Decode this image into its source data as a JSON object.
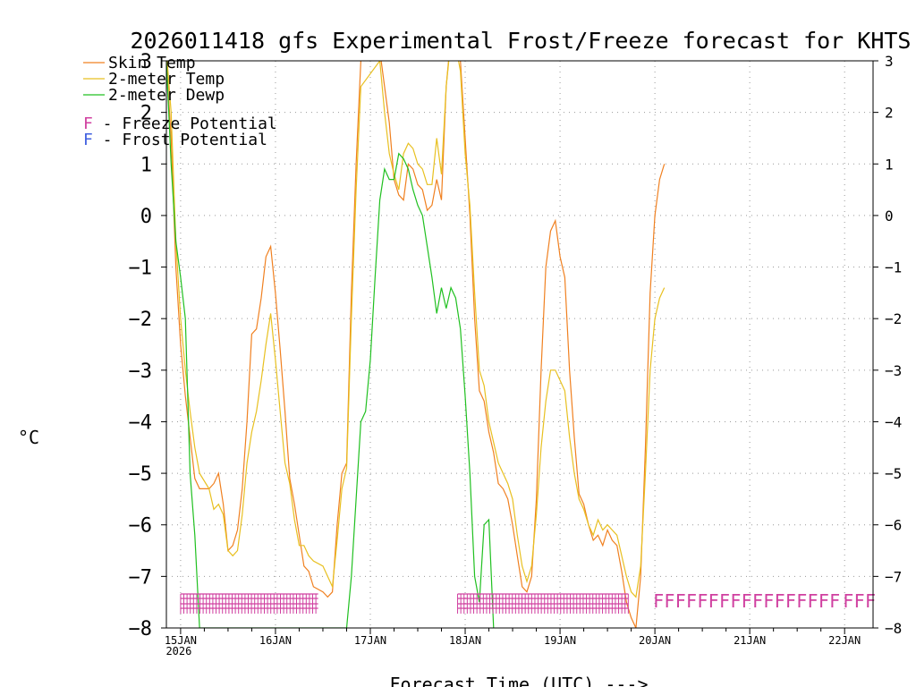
{
  "chart_data": {
    "type": "line",
    "title": "2026011418 gfs Experimental Frost/Freeze forecast for KHTS",
    "ylabel": "°C",
    "xlabel": "Forecast Time (UTC) --->",
    "ylim": [
      -8,
      3
    ],
    "xlim": [
      14.85,
      22.3
    ],
    "yticks": [
      3,
      2,
      1,
      0,
      -1,
      -2,
      -3,
      -4,
      -5,
      -6,
      -7,
      -8
    ],
    "ytick_labels": [
      "3",
      "2",
      "1",
      "0",
      "−1",
      "−2",
      "−3",
      "−4",
      "−5",
      "−6",
      "−7",
      "−8"
    ],
    "xticks": [
      {
        "day": 15,
        "label": "15JAN",
        "sub": "2026"
      },
      {
        "day": 16,
        "label": "16JAN"
      },
      {
        "day": 17,
        "label": "17JAN"
      },
      {
        "day": 18,
        "label": "18JAN"
      },
      {
        "day": 19,
        "label": "19JAN"
      },
      {
        "day": 20,
        "label": "20JAN"
      },
      {
        "day": 21,
        "label": "21JAN"
      },
      {
        "day": 22,
        "label": "22JAN"
      }
    ],
    "grid": true,
    "legend_position": "top-left",
    "series": [
      {
        "name": "Skin Temp",
        "color": "#f08020",
        "points": [
          [
            14.85,
            3.0
          ],
          [
            14.9,
            1.5
          ],
          [
            14.95,
            -1.0
          ],
          [
            15.0,
            -2.5
          ],
          [
            15.05,
            -3.5
          ],
          [
            15.1,
            -4.3
          ],
          [
            15.15,
            -5.1
          ],
          [
            15.2,
            -5.3
          ],
          [
            15.3,
            -5.3
          ],
          [
            15.35,
            -5.2
          ],
          [
            15.4,
            -5.0
          ],
          [
            15.45,
            -5.6
          ],
          [
            15.5,
            -6.5
          ],
          [
            15.55,
            -6.4
          ],
          [
            15.6,
            -6.1
          ],
          [
            15.65,
            -5.3
          ],
          [
            15.7,
            -4.0
          ],
          [
            15.75,
            -2.3
          ],
          [
            15.8,
            -2.2
          ],
          [
            15.85,
            -1.6
          ],
          [
            15.9,
            -0.8
          ],
          [
            15.95,
            -0.6
          ],
          [
            16.0,
            -1.5
          ],
          [
            16.05,
            -2.6
          ],
          [
            16.1,
            -3.8
          ],
          [
            16.15,
            -5.1
          ],
          [
            16.2,
            -5.6
          ],
          [
            16.25,
            -6.2
          ],
          [
            16.3,
            -6.8
          ],
          [
            16.35,
            -6.9
          ],
          [
            16.4,
            -7.2
          ],
          [
            16.5,
            -7.3
          ],
          [
            16.55,
            -7.4
          ],
          [
            16.6,
            -7.3
          ],
          [
            16.65,
            -6.0
          ],
          [
            16.7,
            -5.0
          ],
          [
            16.75,
            -4.8
          ],
          [
            16.8,
            -1.5
          ],
          [
            16.85,
            1.0
          ],
          [
            16.9,
            3.0
          ],
          [
            17.1,
            3.2
          ],
          [
            17.15,
            2.5
          ],
          [
            17.2,
            1.8
          ],
          [
            17.25,
            0.7
          ],
          [
            17.3,
            0.4
          ],
          [
            17.35,
            0.3
          ],
          [
            17.4,
            1.0
          ],
          [
            17.45,
            0.9
          ],
          [
            17.5,
            0.6
          ],
          [
            17.55,
            0.5
          ],
          [
            17.6,
            0.1
          ],
          [
            17.65,
            0.2
          ],
          [
            17.7,
            0.7
          ],
          [
            17.75,
            0.3
          ],
          [
            17.8,
            2.5
          ],
          [
            17.85,
            3.5
          ],
          [
            17.9,
            3.4
          ],
          [
            17.95,
            3.0
          ],
          [
            18.0,
            1.5
          ],
          [
            18.05,
            0.0
          ],
          [
            18.1,
            -2.0
          ],
          [
            18.15,
            -3.4
          ],
          [
            18.2,
            -3.6
          ],
          [
            18.25,
            -4.2
          ],
          [
            18.3,
            -4.6
          ],
          [
            18.35,
            -5.2
          ],
          [
            18.4,
            -5.3
          ],
          [
            18.45,
            -5.5
          ],
          [
            18.5,
            -6.0
          ],
          [
            18.55,
            -6.6
          ],
          [
            18.6,
            -7.2
          ],
          [
            18.65,
            -7.3
          ],
          [
            18.7,
            -7.0
          ],
          [
            18.75,
            -5.5
          ],
          [
            18.8,
            -3.0
          ],
          [
            18.85,
            -1.0
          ],
          [
            18.9,
            -0.3
          ],
          [
            18.95,
            -0.1
          ],
          [
            19.0,
            -0.8
          ],
          [
            19.05,
            -1.2
          ],
          [
            19.1,
            -3.0
          ],
          [
            19.15,
            -4.3
          ],
          [
            19.2,
            -5.4
          ],
          [
            19.25,
            -5.6
          ],
          [
            19.3,
            -6.0
          ],
          [
            19.35,
            -6.3
          ],
          [
            19.4,
            -6.2
          ],
          [
            19.45,
            -6.4
          ],
          [
            19.5,
            -6.1
          ],
          [
            19.55,
            -6.3
          ],
          [
            19.6,
            -6.4
          ],
          [
            19.65,
            -6.9
          ],
          [
            19.7,
            -7.5
          ],
          [
            19.75,
            -7.8
          ],
          [
            19.8,
            -8.0
          ],
          [
            19.85,
            -7.0
          ],
          [
            19.9,
            -4.5
          ],
          [
            19.95,
            -1.5
          ],
          [
            20.0,
            0.0
          ],
          [
            20.05,
            0.7
          ],
          [
            20.1,
            1.0
          ]
        ]
      },
      {
        "name": "2-meter Temp",
        "color": "#e8c020",
        "points": [
          [
            14.85,
            3.2
          ],
          [
            14.9,
            2.0
          ],
          [
            14.95,
            -0.5
          ],
          [
            15.0,
            -2.0
          ],
          [
            15.05,
            -3.0
          ],
          [
            15.1,
            -3.8
          ],
          [
            15.15,
            -4.5
          ],
          [
            15.2,
            -5.0
          ],
          [
            15.3,
            -5.3
          ],
          [
            15.35,
            -5.7
          ],
          [
            15.4,
            -5.6
          ],
          [
            15.45,
            -5.8
          ],
          [
            15.5,
            -6.5
          ],
          [
            15.55,
            -6.6
          ],
          [
            15.6,
            -6.5
          ],
          [
            15.65,
            -5.8
          ],
          [
            15.7,
            -4.8
          ],
          [
            15.75,
            -4.2
          ],
          [
            15.8,
            -3.8
          ],
          [
            15.85,
            -3.2
          ],
          [
            15.9,
            -2.5
          ],
          [
            15.95,
            -1.9
          ],
          [
            16.0,
            -2.8
          ],
          [
            16.05,
            -3.8
          ],
          [
            16.1,
            -4.8
          ],
          [
            16.15,
            -5.2
          ],
          [
            16.2,
            -5.9
          ],
          [
            16.25,
            -6.4
          ],
          [
            16.3,
            -6.4
          ],
          [
            16.35,
            -6.6
          ],
          [
            16.4,
            -6.7
          ],
          [
            16.5,
            -6.8
          ],
          [
            16.55,
            -7.0
          ],
          [
            16.6,
            -7.2
          ],
          [
            16.65,
            -6.3
          ],
          [
            16.7,
            -5.3
          ],
          [
            16.75,
            -4.9
          ],
          [
            16.8,
            -2.0
          ],
          [
            16.85,
            0.5
          ],
          [
            16.9,
            2.5
          ],
          [
            17.1,
            3.0
          ],
          [
            17.15,
            2.0
          ],
          [
            17.2,
            1.2
          ],
          [
            17.25,
            0.8
          ],
          [
            17.3,
            0.5
          ],
          [
            17.35,
            1.2
          ],
          [
            17.4,
            1.4
          ],
          [
            17.45,
            1.3
          ],
          [
            17.5,
            1.0
          ],
          [
            17.55,
            0.9
          ],
          [
            17.6,
            0.6
          ],
          [
            17.65,
            0.6
          ],
          [
            17.7,
            1.5
          ],
          [
            17.75,
            0.8
          ],
          [
            17.8,
            2.5
          ],
          [
            17.85,
            3.4
          ],
          [
            17.9,
            3.3
          ],
          [
            17.95,
            2.8
          ],
          [
            18.0,
            1.2
          ],
          [
            18.05,
            0.2
          ],
          [
            18.1,
            -1.5
          ],
          [
            18.15,
            -3.0
          ],
          [
            18.2,
            -3.3
          ],
          [
            18.25,
            -4.0
          ],
          [
            18.3,
            -4.4
          ],
          [
            18.35,
            -4.8
          ],
          [
            18.4,
            -5.0
          ],
          [
            18.45,
            -5.2
          ],
          [
            18.5,
            -5.5
          ],
          [
            18.55,
            -6.2
          ],
          [
            18.6,
            -6.8
          ],
          [
            18.65,
            -7.1
          ],
          [
            18.7,
            -6.8
          ],
          [
            18.75,
            -5.8
          ],
          [
            18.8,
            -4.5
          ],
          [
            18.85,
            -3.6
          ],
          [
            18.9,
            -3.0
          ],
          [
            18.95,
            -3.0
          ],
          [
            19.0,
            -3.2
          ],
          [
            19.05,
            -3.4
          ],
          [
            19.1,
            -4.3
          ],
          [
            19.15,
            -5.0
          ],
          [
            19.2,
            -5.5
          ],
          [
            19.25,
            -5.7
          ],
          [
            19.3,
            -6.0
          ],
          [
            19.35,
            -6.2
          ],
          [
            19.4,
            -5.9
          ],
          [
            19.45,
            -6.1
          ],
          [
            19.5,
            -6.0
          ],
          [
            19.55,
            -6.1
          ],
          [
            19.6,
            -6.2
          ],
          [
            19.65,
            -6.6
          ],
          [
            19.7,
            -7.0
          ],
          [
            19.75,
            -7.3
          ],
          [
            19.8,
            -7.4
          ],
          [
            19.85,
            -6.8
          ],
          [
            19.9,
            -5.0
          ],
          [
            19.95,
            -3.0
          ],
          [
            20.0,
            -2.0
          ],
          [
            20.05,
            -1.6
          ],
          [
            20.1,
            -1.4
          ]
        ]
      },
      {
        "name": "2-meter Dewp",
        "color": "#20c020",
        "points": [
          [
            14.85,
            3.0
          ],
          [
            14.9,
            1.0
          ],
          [
            14.95,
            -0.5
          ],
          [
            15.0,
            -1.2
          ],
          [
            15.05,
            -2.0
          ],
          [
            15.1,
            -5.0
          ],
          [
            15.15,
            -6.2
          ],
          [
            15.2,
            -8.0
          ],
          [
            16.75,
            -8.0
          ],
          [
            16.8,
            -7.0
          ],
          [
            16.85,
            -5.5
          ],
          [
            16.9,
            -4.0
          ],
          [
            16.95,
            -3.8
          ],
          [
            17.0,
            -2.8
          ],
          [
            17.05,
            -1.2
          ],
          [
            17.1,
            0.3
          ],
          [
            17.15,
            0.9
          ],
          [
            17.2,
            0.7
          ],
          [
            17.25,
            0.7
          ],
          [
            17.3,
            1.2
          ],
          [
            17.35,
            1.1
          ],
          [
            17.4,
            0.9
          ],
          [
            17.45,
            0.5
          ],
          [
            17.5,
            0.2
          ],
          [
            17.55,
            0.0
          ],
          [
            17.6,
            -0.6
          ],
          [
            17.65,
            -1.2
          ],
          [
            17.7,
            -1.9
          ],
          [
            17.75,
            -1.4
          ],
          [
            17.8,
            -1.8
          ],
          [
            17.85,
            -1.4
          ],
          [
            17.9,
            -1.6
          ],
          [
            17.95,
            -2.2
          ],
          [
            18.0,
            -3.5
          ],
          [
            18.05,
            -5.0
          ],
          [
            18.1,
            -7.0
          ],
          [
            18.15,
            -7.5
          ],
          [
            18.2,
            -6.0
          ],
          [
            18.25,
            -5.9
          ],
          [
            18.3,
            -8.0
          ]
        ]
      }
    ],
    "frost_freeze_rows": [
      {
        "from": 15.0,
        "to": 16.45,
        "marker": "F",
        "color": "#d040a0",
        "label": "Freeze Potential",
        "row": 0
      },
      {
        "from": 15.0,
        "to": 16.45,
        "marker": "F",
        "color": "#d040a0",
        "label": "Freeze Potential",
        "row": 1
      },
      {
        "from": 17.92,
        "to": 19.72,
        "marker": "F",
        "color": "#d040a0",
        "label": "Freeze Potential",
        "row": 0
      },
      {
        "from": 17.92,
        "to": 19.72,
        "marker": "F",
        "color": "#d040a0",
        "label": "Freeze Potential",
        "row": 1
      }
    ],
    "frost_freeze_text": [
      {
        "day": 20.0,
        "text": "FFFFFFFFFFFFFFFFF",
        "color": "#d040a0"
      },
      {
        "day": 22.0,
        "text": "FFF",
        "color": "#d040a0"
      }
    ],
    "legend": [
      {
        "label": "Skin Temp",
        "color": "#f08020",
        "kind": "line"
      },
      {
        "label": "2-meter Temp",
        "color": "#e8c020",
        "kind": "line"
      },
      {
        "label": "2-meter Dewp",
        "color": "#20c020",
        "kind": "line"
      },
      {
        "label": "F - Freeze Potential",
        "color": "#d040a0",
        "kind": "text"
      },
      {
        "label": "F - Frost Potential",
        "color": "#4060e0",
        "kind": "text"
      }
    ]
  }
}
